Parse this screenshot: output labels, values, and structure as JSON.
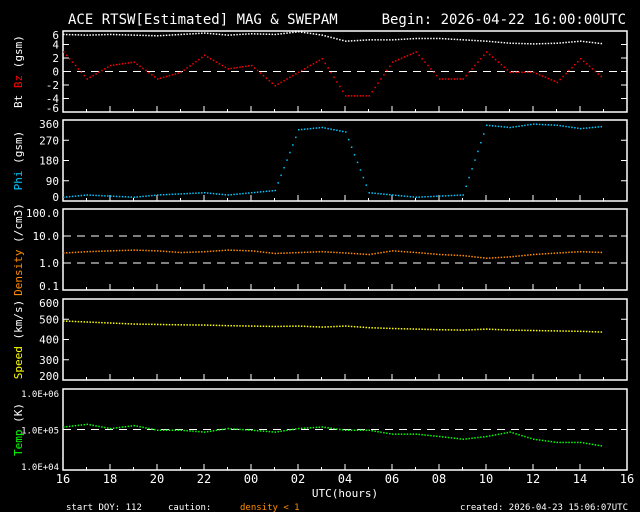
{
  "header": {
    "title": "ACE RTSW[Estimated] MAG & SWEPAM",
    "begin": "Begin: 2026-04-22 16:00:00UTC"
  },
  "footer": {
    "start_doy": "start DOY: 112",
    "caution": "caution:",
    "density_note": "density < 1",
    "created": "created: 2026-04-23 15:06:07UTC"
  },
  "colors": {
    "bt": "#ffffff",
    "bz": "#ff0000",
    "phi": "#00c8ff",
    "density": "#ff8c00",
    "speed": "#ffff00",
    "temp": "#00ff00"
  },
  "chart_data": [
    {
      "type": "scatter",
      "ylabel_parts": [
        "Bt",
        "Bz",
        "(gsm)"
      ],
      "ylim": [
        -6,
        6
      ],
      "yticks": [
        "6",
        "4",
        "2",
        "0",
        "-2",
        "-4",
        "-6"
      ],
      "dashed": [
        0
      ],
      "x": [
        16,
        17,
        18,
        19,
        20,
        21,
        22,
        23,
        0,
        1,
        2,
        3,
        4,
        5,
        6,
        7,
        8,
        9,
        10,
        11,
        12,
        13,
        14,
        15
      ],
      "series": [
        {
          "name": "Bt",
          "color_key": "bt",
          "values": [
            5.6,
            5.5,
            5.6,
            5.5,
            5.4,
            5.6,
            5.8,
            5.5,
            5.7,
            5.6,
            6.0,
            5.5,
            4.6,
            4.8,
            4.8,
            5.0,
            5.0,
            4.8,
            4.6,
            4.3,
            4.2,
            4.3,
            4.6,
            4.2
          ]
        },
        {
          "name": "Bz",
          "color_key": "bz",
          "values": [
            3,
            -1,
            1,
            1.5,
            -1,
            0,
            2.5,
            0.5,
            1,
            -2,
            0,
            2,
            -3.5,
            -3.5,
            1.5,
            3,
            -1,
            -1,
            3,
            0,
            0,
            -1.5,
            2,
            -1
          ]
        }
      ]
    },
    {
      "type": "scatter",
      "ylabel_parts": [
        "Phi",
        "(gsm)"
      ],
      "ylim": [
        0,
        360
      ],
      "yticks": [
        "360",
        "270",
        "180",
        "90",
        "0"
      ],
      "x": [
        16,
        17,
        18,
        19,
        20,
        21,
        22,
        23,
        0,
        1,
        2,
        3,
        4,
        5,
        6,
        7,
        8,
        9,
        10,
        11,
        12,
        13,
        14,
        15
      ],
      "series": [
        {
          "name": "Phi",
          "color_key": "phi",
          "values": [
            20,
            30,
            25,
            20,
            30,
            35,
            40,
            30,
            40,
            50,
            320,
            330,
            310,
            40,
            30,
            20,
            25,
            30,
            340,
            330,
            345,
            340,
            325,
            335
          ]
        }
      ]
    },
    {
      "type": "scatter",
      "log": true,
      "ylabel_parts": [
        "Density",
        "(/cm3)"
      ],
      "ylim": [
        0.1,
        100
      ],
      "yticks": [
        "100.0",
        "10.0",
        "1.0",
        "0.1"
      ],
      "dashed": [
        1,
        10
      ],
      "x": [
        16,
        17,
        18,
        19,
        20,
        21,
        22,
        23,
        0,
        1,
        2,
        3,
        4,
        5,
        6,
        7,
        8,
        9,
        10,
        11,
        12,
        13,
        14,
        15
      ],
      "series": [
        {
          "name": "Density",
          "color_key": "density",
          "values": [
            2.5,
            2.8,
            3.0,
            3.2,
            3.0,
            2.6,
            2.8,
            3.2,
            3.0,
            2.4,
            2.6,
            2.8,
            2.5,
            2.2,
            3.0,
            2.6,
            2.2,
            2.0,
            1.6,
            1.8,
            2.2,
            2.5,
            2.8,
            2.6
          ]
        }
      ]
    },
    {
      "type": "scatter",
      "ylabel_parts": [
        "Speed",
        "(km/s)"
      ],
      "ylim": [
        200,
        600
      ],
      "yticks": [
        "600",
        "500",
        "400",
        "300",
        "200"
      ],
      "x": [
        16,
        17,
        18,
        19,
        20,
        21,
        22,
        23,
        0,
        1,
        2,
        3,
        4,
        5,
        6,
        7,
        8,
        9,
        10,
        11,
        12,
        13,
        14,
        15
      ],
      "series": [
        {
          "name": "Speed",
          "color_key": "speed",
          "values": [
            495,
            490,
            485,
            480,
            478,
            476,
            475,
            472,
            470,
            468,
            470,
            465,
            470,
            462,
            458,
            455,
            452,
            450,
            455,
            450,
            448,
            446,
            444,
            440
          ]
        }
      ]
    },
    {
      "type": "scatter",
      "log": true,
      "ylabel_parts": [
        "Temp",
        "(K)"
      ],
      "ylim": [
        10000,
        1000000
      ],
      "yticks": [
        "1.0E+06",
        "1.0E+05",
        "1.0E+04"
      ],
      "dashed": [
        100000
      ],
      "x": [
        16,
        17,
        18,
        19,
        20,
        21,
        22,
        23,
        0,
        1,
        2,
        3,
        4,
        5,
        6,
        7,
        8,
        9,
        10,
        11,
        12,
        13,
        14,
        15
      ],
      "series": [
        {
          "name": "Temp",
          "color_key": "temp",
          "values": [
            120000,
            140000,
            110000,
            130000,
            100000,
            100000,
            90000,
            110000,
            100000,
            90000,
            110000,
            120000,
            100000,
            100000,
            80000,
            80000,
            70000,
            60000,
            70000,
            90000,
            60000,
            50000,
            50000,
            40000
          ]
        }
      ]
    }
  ],
  "xaxis": {
    "ticks": [
      "16",
      "18",
      "20",
      "22",
      "00",
      "02",
      "04",
      "06",
      "08",
      "10",
      "12",
      "14",
      "16"
    ],
    "label": "UTC(hours)"
  }
}
